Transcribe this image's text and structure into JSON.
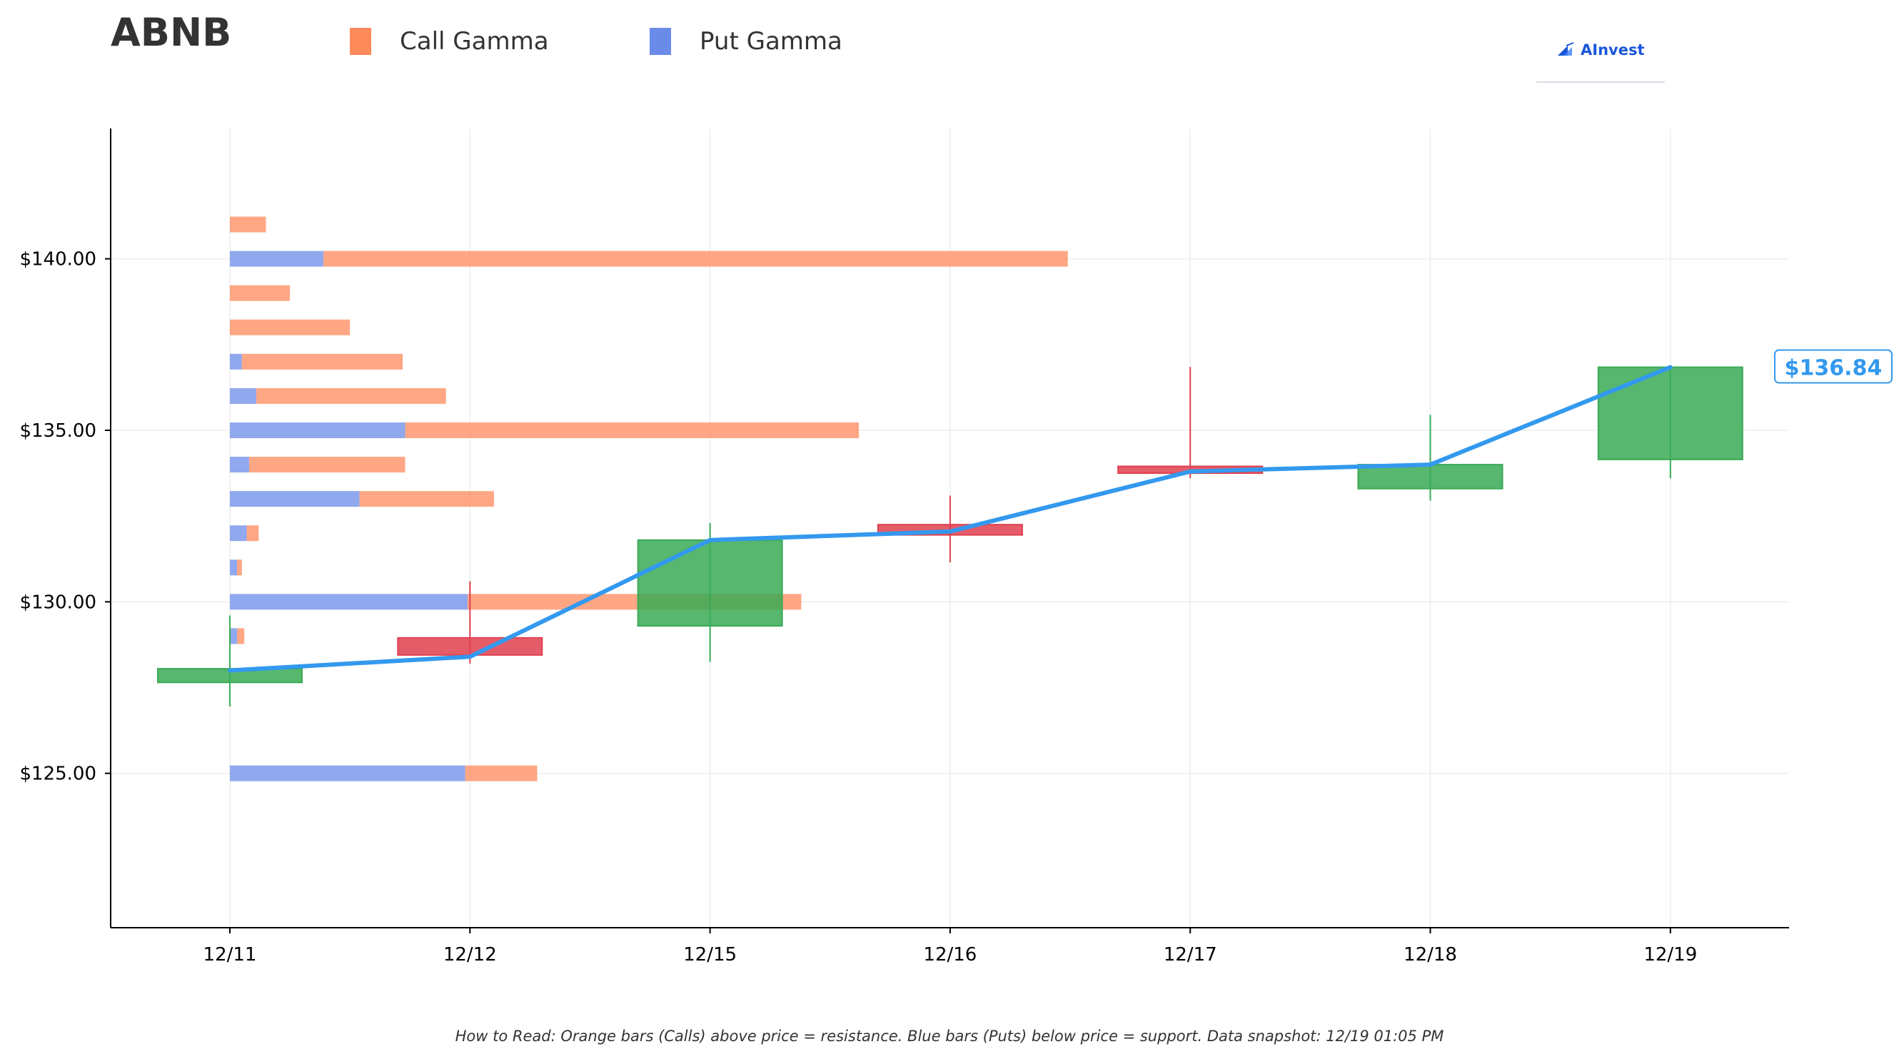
{
  "header": {
    "ticker": "ABNB",
    "legend": [
      {
        "label": "Call Gamma",
        "color": "#ff8a5c"
      },
      {
        "label": "Put Gamma",
        "color": "#6b8be8"
      }
    ],
    "logo_text": "AInvest",
    "logo_icon": "ainvest-logo-icon"
  },
  "footer": {
    "note": "How to Read: Orange bars (Calls) above price = resistance. Blue bars (Puts) below price = support. Data snapshot: 12/19 01:05 PM"
  },
  "chart_data": {
    "type": "candlestick",
    "title": "ABNB",
    "categories": [
      "12/11",
      "12/12",
      "12/15",
      "12/16",
      "12/17",
      "12/18",
      "12/19"
    ],
    "ylim": [
      120.5,
      143.8
    ],
    "y_ticks": [
      125,
      130,
      135,
      140
    ],
    "y_tick_labels": [
      "$125.00",
      "$130.00",
      "$135.00",
      "$140.00"
    ],
    "grid": true,
    "colors": {
      "call": "#ff8a5c",
      "put": "#6b8be8",
      "up": "#3aaa55",
      "down": "#e0404f",
      "price_line": "#3399ee"
    },
    "candles": [
      {
        "date": "12/11",
        "open": 127.65,
        "high": 129.6,
        "low": 126.95,
        "close": 128.05
      },
      {
        "date": "12/12",
        "open": 128.95,
        "high": 130.6,
        "low": 128.2,
        "close": 128.45
      },
      {
        "date": "12/15",
        "open": 129.3,
        "high": 132.3,
        "low": 128.25,
        "close": 131.8
      },
      {
        "date": "12/16",
        "open": 132.25,
        "high": 133.1,
        "low": 131.15,
        "close": 131.95
      },
      {
        "date": "12/17",
        "open": 133.95,
        "high": 136.85,
        "low": 133.6,
        "close": 133.75
      },
      {
        "date": "12/18",
        "open": 133.3,
        "high": 135.45,
        "low": 132.95,
        "close": 134.0
      },
      {
        "date": "12/19",
        "open": 134.15,
        "high": 136.85,
        "low": 133.6,
        "close": 136.84
      }
    ],
    "price_line": [
      128.0,
      128.4,
      131.8,
      132.05,
      133.8,
      134.0,
      136.84
    ],
    "last_price_label": "$136.84",
    "gamma_strikes": [
      {
        "strike": 141,
        "put": 0.0,
        "call": 0.15
      },
      {
        "strike": 140,
        "put": 0.39,
        "call": 3.1
      },
      {
        "strike": 139,
        "put": 0.0,
        "call": 0.25
      },
      {
        "strike": 138,
        "put": 0.0,
        "call": 0.5
      },
      {
        "strike": 137,
        "put": 0.05,
        "call": 0.67
      },
      {
        "strike": 136,
        "put": 0.11,
        "call": 0.79
      },
      {
        "strike": 135,
        "put": 0.73,
        "call": 1.89
      },
      {
        "strike": 134,
        "put": 0.08,
        "call": 0.65
      },
      {
        "strike": 133,
        "put": 0.54,
        "call": 0.56
      },
      {
        "strike": 132,
        "put": 0.07,
        "call": 0.05
      },
      {
        "strike": 131,
        "put": 0.03,
        "call": 0.02
      },
      {
        "strike": 130,
        "put": 0.99,
        "call": 1.39
      },
      {
        "strike": 129,
        "put": 0.03,
        "call": 0.03
      },
      {
        "strike": 125,
        "put": 0.98,
        "call": 0.3
      }
    ]
  }
}
